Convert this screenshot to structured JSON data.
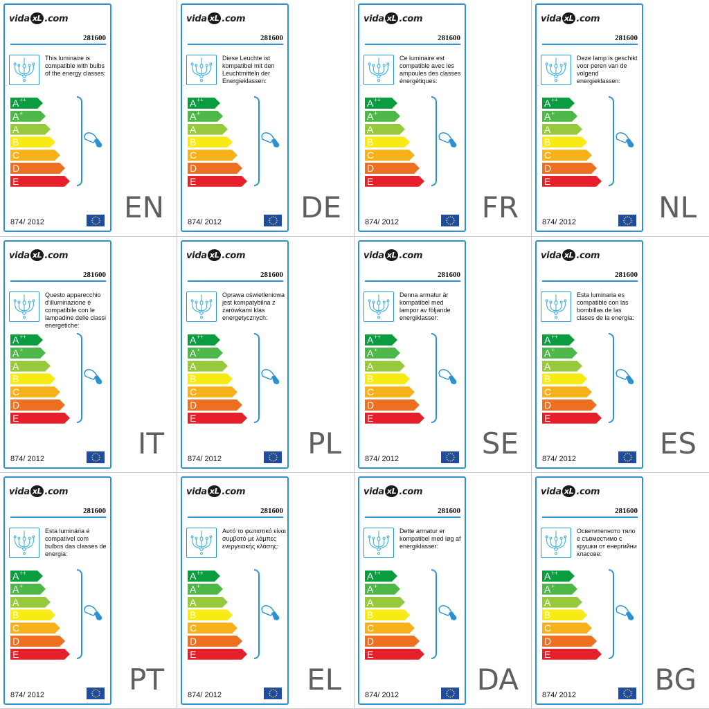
{
  "code": "281600",
  "regulation": "874/ 2012",
  "brand": {
    "prefix": "vida",
    "mark": "xL",
    "suffix": ".com"
  },
  "icons": {
    "lamp": "chandelier-icon",
    "bulb": "bulb-icon",
    "flag": "eu-flag-icon"
  },
  "colors": {
    "accent": "#2a93cf",
    "eu_blue": "#1f4ba0",
    "eu_star": "#ffdd00"
  },
  "energy_classes": [
    {
      "letter": "A",
      "sup": "++",
      "color": "#0a9d3f",
      "width_pct": 0.47
    },
    {
      "letter": "A",
      "sup": "+",
      "color": "#4db847",
      "width_pct": 0.51
    },
    {
      "letter": "A",
      "sup": "",
      "color": "#98c93c",
      "width_pct": 0.58
    },
    {
      "letter": "B",
      "sup": "",
      "color": "#f6ec13",
      "width_pct": 0.65
    },
    {
      "letter": "C",
      "sup": "",
      "color": "#f7b11a",
      "width_pct": 0.72
    },
    {
      "letter": "D",
      "sup": "",
      "color": "#ed6f1f",
      "width_pct": 0.79
    },
    {
      "letter": "E",
      "sup": "",
      "color": "#e5202a",
      "width_pct": 0.86
    }
  ],
  "labels": [
    {
      "lang": "EN",
      "text": "This luminaire is compatible with bulbs of the energy classes:"
    },
    {
      "lang": "DE",
      "text": "Diese Leuchte ist kompatibel mit den Leuchtmitteln der Energieklassen:"
    },
    {
      "lang": "FR",
      "text": "Ce luminaire est compatible avec les ampoules des classes énergétiques:"
    },
    {
      "lang": "NL",
      "text": "Deze lamp is geschikt voor peren van de volgend energieklassen:"
    },
    {
      "lang": "IT",
      "text": "Questo apparecchio d'illuminazione è compatibile con le lampadine delle classi energetiche:"
    },
    {
      "lang": "PL",
      "text": "Oprawa oświetleniowa jest kompatybilna z żarówkami klas energetycznych:"
    },
    {
      "lang": "SE",
      "text": "Denna armatur är kompatibel med lampor av följande energiklasser:"
    },
    {
      "lang": "ES",
      "text": "Esta luminaria es compatible con las bombillas de las clases de la energía:"
    },
    {
      "lang": "PT",
      "text": "Esta luminária é compatível com bulbos das classes de energia:"
    },
    {
      "lang": "EL",
      "text": "Αυτό το φωτιστικό είναι συμβατό με λάμπες ενεργειακής κλάσης:"
    },
    {
      "lang": "DA",
      "text": "Dette armatur er kompatibel med løg af energiklasser:"
    },
    {
      "lang": "BG",
      "text": "Осветителното тяло е съвместимо с крушки от енергийни класове:"
    }
  ]
}
